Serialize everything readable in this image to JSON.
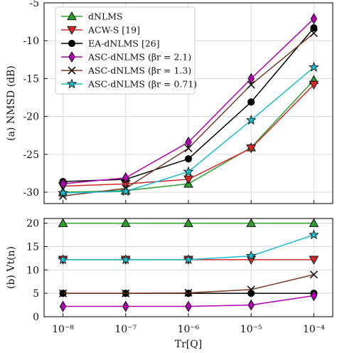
{
  "chart_data": [
    {
      "type": "line",
      "panel": "top",
      "ylabel": "(a) NMSD (dB)",
      "xlabel": "",
      "x": [
        1e-08,
        1e-07,
        1e-06,
        1e-05,
        0.0001
      ],
      "xscale": "log",
      "xlim": [
        5e-09,
        0.0002
      ],
      "ylim": [
        -31.5,
        -5
      ],
      "yticks": [
        -30,
        -25,
        -20,
        -15,
        -10,
        -5
      ],
      "ytick_labels": [
        "-30",
        "-25",
        "-20",
        "-15",
        "-10",
        "-5"
      ],
      "grid": true,
      "legend_position": "top-left",
      "series": [
        {
          "name": "dNLMS",
          "color": "#2ca02c",
          "marker": "triangle-up",
          "values": [
            -30.0,
            -29.8,
            -28.9,
            -24.1,
            -15.2
          ]
        },
        {
          "name": "ACW-S [19]",
          "color": "#d62728",
          "marker": "triangle-down",
          "values": [
            -29.2,
            -28.9,
            -28.3,
            -24.2,
            -15.8
          ]
        },
        {
          "name": "EA-dNLMS [26]",
          "color": "#000000",
          "marker": "circle",
          "values": [
            -28.6,
            -28.3,
            -25.6,
            -18.1,
            -8.3
          ]
        },
        {
          "name": "ASC-dNLMS (βr = 2.1)",
          "color": "#b200b2",
          "marker": "diamond",
          "values": [
            -28.9,
            -28.1,
            -23.4,
            -15.0,
            -7.1
          ]
        },
        {
          "name": "ASC-dNLMS (βr = 1.3)",
          "color": "#7a3a2a",
          "marker": "x",
          "values": [
            -30.5,
            -29.5,
            -24.2,
            -15.8,
            -9.0
          ]
        },
        {
          "name": "ASC-dNLMS (βr = 0.71)",
          "color": "#17becf",
          "marker": "star",
          "values": [
            -30.1,
            -29.9,
            -27.3,
            -20.5,
            -13.5
          ]
        }
      ]
    },
    {
      "type": "line",
      "panel": "bottom",
      "ylabel": "(b) Vt(n)",
      "xlabel": "Tr[Q]",
      "x": [
        1e-08,
        1e-07,
        1e-06,
        1e-05,
        0.0001
      ],
      "xscale": "log",
      "xlim": [
        5e-09,
        0.0002
      ],
      "xtick_labels": [
        "10⁻⁸",
        "10⁻⁷",
        "10⁻⁶",
        "10⁻⁵",
        "10⁻⁴"
      ],
      "ylim": [
        0,
        21
      ],
      "yticks": [
        0,
        5,
        10,
        15,
        20
      ],
      "ytick_labels": [
        "0",
        "5",
        "10",
        "15",
        "20"
      ],
      "grid": true,
      "series": [
        {
          "name": "dNLMS",
          "color": "#2ca02c",
          "marker": "triangle-up",
          "values": [
            20,
            20,
            20,
            20,
            20
          ]
        },
        {
          "name": "ACW-S [19]",
          "color": "#d62728",
          "marker": "triangle-down",
          "values": [
            12.2,
            12.2,
            12.2,
            12.2,
            12.2
          ]
        },
        {
          "name": "EA-dNLMS [26]",
          "color": "#000000",
          "marker": "circle",
          "values": [
            5,
            5,
            5,
            5,
            5
          ]
        },
        {
          "name": "ASC-dNLMS (βr = 2.1)",
          "color": "#b200b2",
          "marker": "diamond",
          "values": [
            2.2,
            2.2,
            2.2,
            2.5,
            4.5
          ]
        },
        {
          "name": "ASC-dNLMS (βr = 1.3)",
          "color": "#7a3a2a",
          "marker": "x",
          "values": [
            5,
            5,
            5.1,
            5.8,
            9
          ]
        },
        {
          "name": "ASC-dNLMS (βr = 0.71)",
          "color": "#17becf",
          "marker": "star",
          "values": [
            12.2,
            12.2,
            12.2,
            13,
            17.5
          ]
        }
      ]
    }
  ]
}
